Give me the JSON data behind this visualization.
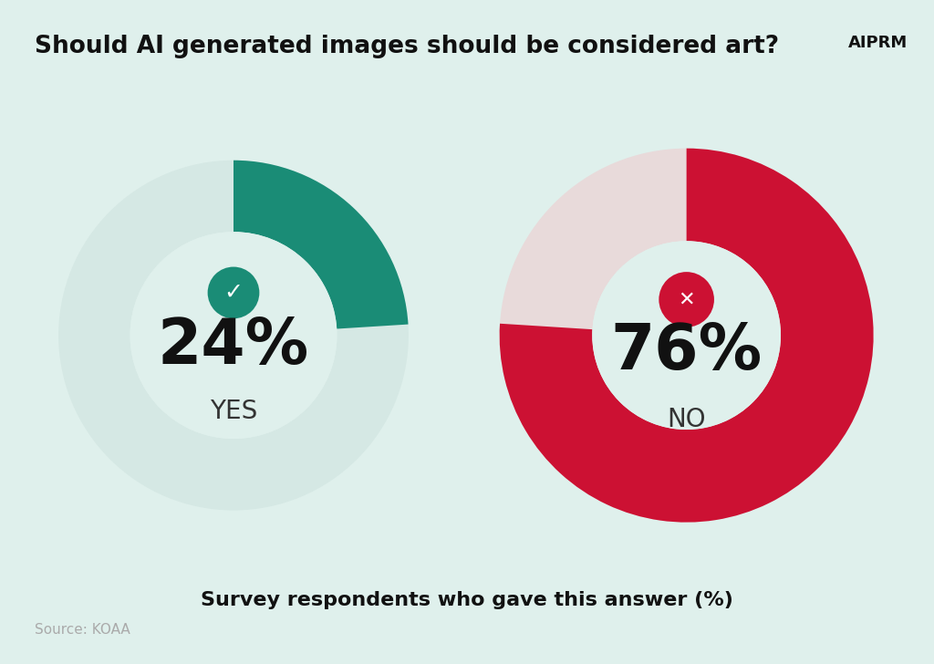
{
  "title": "Should AI generated images should be considered art?",
  "subtitle": "Survey respondents who gave this answer (%)",
  "source": "Source: KOAA",
  "background_color": "#dff0ec",
  "yes_pct": 24,
  "no_pct": 76,
  "yes_color": "#1a8c76",
  "yes_bg_color": "#d5e8e4",
  "no_color": "#cc1133",
  "no_bg_color": "#e8dada",
  "label_yes": "YES",
  "label_no": "NO",
  "title_fontsize": 19,
  "subtitle_fontsize": 16,
  "source_fontsize": 11,
  "pct_fontsize": 52,
  "label_fontsize": 20
}
